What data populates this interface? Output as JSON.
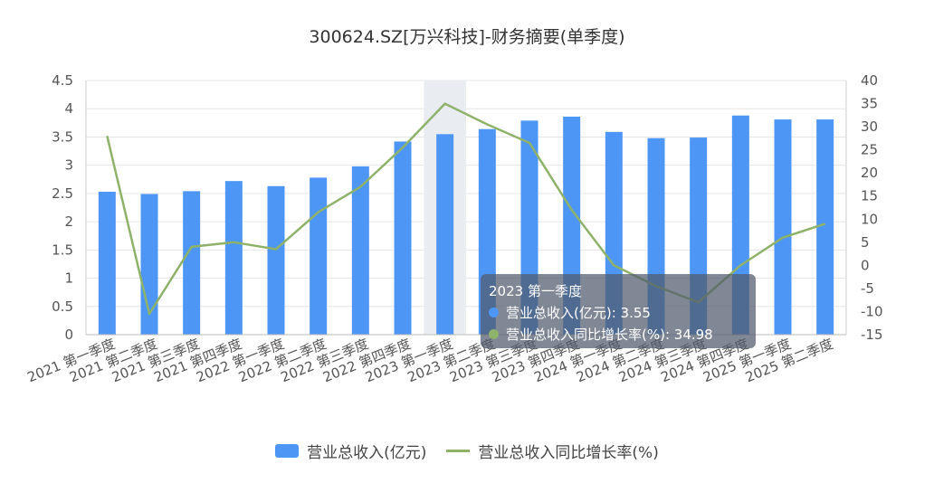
{
  "chart_data": {
    "type": "bar",
    "title": "300624.SZ[万兴科技]-财务摘要(单季度)",
    "categories": [
      "2021 第一季度",
      "2021 第二季度",
      "2021 第三季度",
      "2021 第四季度",
      "2022 第一季度",
      "2022 第二季度",
      "2022 第三季度",
      "2022 第四季度",
      "2023 第一季度",
      "2023 第二季度",
      "2023 第三季度",
      "2023 第四季度",
      "2024 第一季度",
      "2024 第二季度",
      "2024 第三季度",
      "2024 第四季度",
      "2025 第一季度",
      "2025 第二季度"
    ],
    "series": [
      {
        "name": "营业总收入(亿元)",
        "type": "bar",
        "axis": "left",
        "color": "#4e96f5",
        "values": [
          2.53,
          2.49,
          2.54,
          2.72,
          2.63,
          2.78,
          2.98,
          3.42,
          3.55,
          3.64,
          3.79,
          3.86,
          3.59,
          3.48,
          3.49,
          3.88,
          3.81,
          3.81
        ]
      },
      {
        "name": "营业总收入同比增长率(%)",
        "type": "line",
        "axis": "right",
        "color": "#8fb26b",
        "values": [
          28,
          -10.5,
          4,
          5,
          3.5,
          11.5,
          17,
          25.5,
          34.98,
          30.5,
          26.5,
          12,
          0,
          -4.5,
          -8,
          0,
          6,
          9
        ]
      }
    ],
    "ylim_left": [
      0,
      4.5
    ],
    "yticks_left": [
      "0",
      "0.5",
      "1",
      "1.5",
      "2",
      "2.5",
      "3",
      "3.5",
      "4",
      "4.5"
    ],
    "ylim_right": [
      -15,
      40
    ],
    "yticks_right": [
      "-15",
      "-10",
      "-5",
      "0",
      "5",
      "10",
      "15",
      "20",
      "25",
      "30",
      "35",
      "40"
    ],
    "grid": true,
    "legend_position": "bottom-center",
    "highlight_index": 8
  },
  "tooltip": {
    "title": "2023 第一季度",
    "row1": "营业总收入(亿元): 3.55",
    "row2": "营业总收入同比增长率(%): 34.98",
    "dot1_color": "#4e96f5",
    "dot2_color": "#8fb26b"
  }
}
